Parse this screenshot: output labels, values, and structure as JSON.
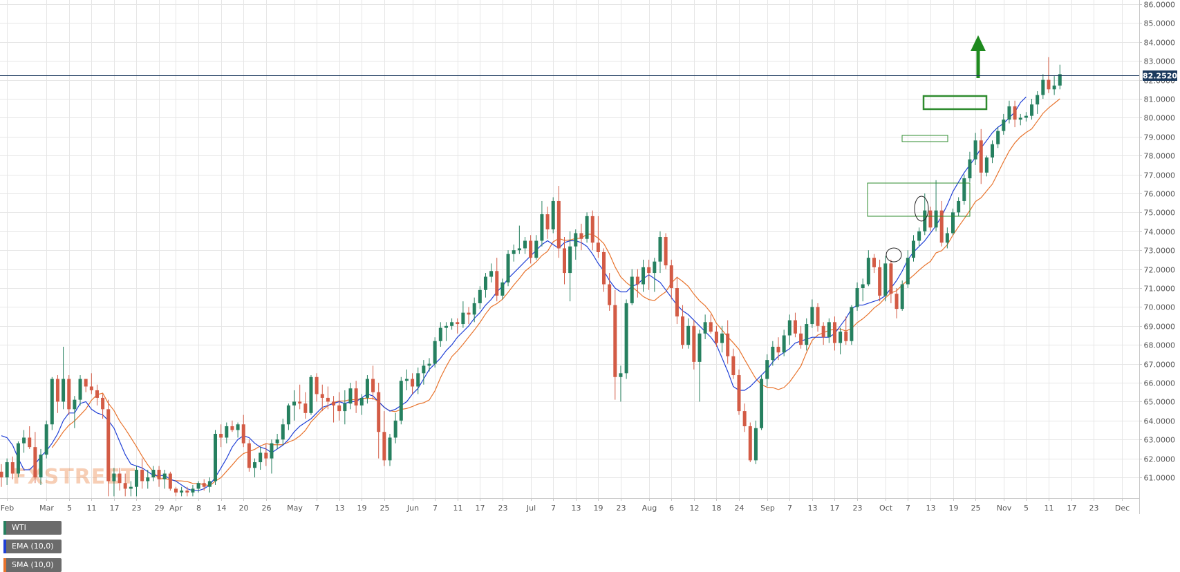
{
  "instrument": "WTI",
  "legend": [
    {
      "label": "WTI",
      "color": "#26805f"
    },
    {
      "label": "EMA (10,0)",
      "color": "#1f3fd6"
    },
    {
      "label": "SMA (10,0)",
      "color": "#e8732c"
    }
  ],
  "watermark": "FXSTREET",
  "last_price_label": "82.2520",
  "colors": {
    "bull": "#26805f",
    "bear": "#d35b45",
    "ema": "#1f3fd6",
    "sma": "#e8732c",
    "annotation": "#2e8b2e",
    "arrow": "#1e8a1e",
    "price_line": "#1c3a5e",
    "grid": "#e6e6e6"
  },
  "chart_data": {
    "type": "candlestick",
    "ylim": [
      60.4,
      86.0
    ],
    "grid": true,
    "y_ticks": [
      "61.0000",
      "62.0000",
      "63.0000",
      "64.0000",
      "65.0000",
      "66.0000",
      "67.0000",
      "68.0000",
      "69.0000",
      "70.0000",
      "71.0000",
      "72.0000",
      "73.0000",
      "74.0000",
      "75.0000",
      "76.0000",
      "77.0000",
      "78.0000",
      "79.0000",
      "80.0000",
      "81.0000",
      "82.0000",
      "83.0000",
      "84.0000",
      "85.0000",
      "86.0000"
    ],
    "x_ticks": [
      {
        "label": "Feb",
        "x": 1
      },
      {
        "label": "Mar",
        "x": 8
      },
      {
        "label": "5",
        "x": 12
      },
      {
        "label": "11",
        "x": 16
      },
      {
        "label": "17",
        "x": 20
      },
      {
        "label": "23",
        "x": 24
      },
      {
        "label": "29",
        "x": 28
      },
      {
        "label": "Apr",
        "x": 31
      },
      {
        "label": "8",
        "x": 35
      },
      {
        "label": "14",
        "x": 39
      },
      {
        "label": "20",
        "x": 43
      },
      {
        "label": "26",
        "x": 47
      },
      {
        "label": "May",
        "x": 52
      },
      {
        "label": "7",
        "x": 56
      },
      {
        "label": "13",
        "x": 60
      },
      {
        "label": "19",
        "x": 64
      },
      {
        "label": "25",
        "x": 68
      },
      {
        "label": "Jun",
        "x": 73
      },
      {
        "label": "7",
        "x": 77
      },
      {
        "label": "11",
        "x": 81
      },
      {
        "label": "17",
        "x": 85
      },
      {
        "label": "23",
        "x": 89
      },
      {
        "label": "Jul",
        "x": 94
      },
      {
        "label": "7",
        "x": 98
      },
      {
        "label": "13",
        "x": 102
      },
      {
        "label": "19",
        "x": 106
      },
      {
        "label": "23",
        "x": 110
      },
      {
        "label": "Aug",
        "x": 115
      },
      {
        "label": "6",
        "x": 119
      },
      {
        "label": "12",
        "x": 123
      },
      {
        "label": "18",
        "x": 127
      },
      {
        "label": "24",
        "x": 131
      },
      {
        "label": "Sep",
        "x": 136
      },
      {
        "label": "7",
        "x": 140
      },
      {
        "label": "13",
        "x": 144
      },
      {
        "label": "17",
        "x": 148
      },
      {
        "label": "23",
        "x": 152
      },
      {
        "label": "Oct",
        "x": 157
      },
      {
        "label": "7",
        "x": 161
      },
      {
        "label": "13",
        "x": 165
      },
      {
        "label": "19",
        "x": 169
      },
      {
        "label": "25",
        "x": 173
      },
      {
        "label": "Nov",
        "x": 178
      },
      {
        "label": "5",
        "x": 182
      },
      {
        "label": "11",
        "x": 186
      },
      {
        "label": "17",
        "x": 190
      },
      {
        "label": "23",
        "x": 194
      },
      {
        "label": "Dec",
        "x": 199
      }
    ],
    "candles": [
      [
        61.3,
        61.7,
        60.5,
        61.0
      ],
      [
        61.0,
        62.0,
        60.6,
        61.8
      ],
      [
        61.8,
        62.1,
        60.9,
        61.2
      ],
      [
        61.2,
        62.9,
        61.0,
        62.8
      ],
      [
        62.8,
        63.5,
        62.3,
        63.1
      ],
      [
        63.1,
        63.7,
        62.5,
        62.6
      ],
      [
        62.6,
        63.4,
        60.7,
        61.0
      ],
      [
        61.0,
        62.5,
        60.6,
        62.2
      ],
      [
        62.2,
        64.0,
        62.0,
        63.8
      ],
      [
        63.8,
        66.3,
        63.5,
        66.2
      ],
      [
        66.2,
        66.4,
        64.4,
        65.0
      ],
      [
        65.0,
        67.9,
        64.6,
        66.2
      ],
      [
        66.2,
        66.4,
        64.3,
        64.6
      ],
      [
        64.6,
        65.3,
        63.6,
        65.1
      ],
      [
        65.1,
        66.4,
        64.8,
        66.2
      ],
      [
        66.2,
        66.2,
        65.5,
        65.8
      ],
      [
        65.8,
        66.5,
        65.4,
        65.6
      ],
      [
        65.6,
        65.9,
        64.8,
        65.2
      ],
      [
        65.2,
        65.4,
        64.1,
        64.6
      ],
      [
        64.6,
        65.1,
        60.0,
        60.8
      ],
      [
        60.8,
        61.5,
        60.0,
        61.2
      ],
      [
        61.2,
        61.5,
        60.3,
        60.7
      ],
      [
        60.7,
        61.2,
        60.0,
        60.4
      ],
      [
        60.4,
        60.8,
        60.0,
        60.5
      ],
      [
        60.5,
        61.6,
        60.0,
        61.4
      ],
      [
        61.4,
        62.0,
        60.4,
        60.8
      ],
      [
        60.8,
        61.4,
        60.4,
        61.0
      ],
      [
        61.0,
        61.6,
        60.8,
        61.4
      ],
      [
        61.4,
        61.6,
        60.5,
        60.9
      ],
      [
        60.9,
        61.4,
        60.4,
        61.2
      ],
      [
        61.2,
        61.3,
        60.3,
        60.4
      ],
      [
        60.4,
        60.5,
        60.0,
        60.2
      ],
      [
        60.2,
        60.5,
        60.0,
        60.3
      ],
      [
        60.3,
        60.5,
        60.0,
        60.2
      ],
      [
        60.2,
        60.6,
        60.0,
        60.4
      ],
      [
        60.4,
        60.8,
        60.2,
        60.7
      ],
      [
        60.7,
        60.9,
        60.3,
        60.5
      ],
      [
        60.5,
        61.0,
        60.2,
        60.8
      ],
      [
        60.8,
        63.5,
        60.6,
        63.3
      ],
      [
        63.3,
        63.8,
        62.6,
        63.1
      ],
      [
        63.1,
        63.9,
        62.8,
        63.7
      ],
      [
        63.7,
        64.0,
        63.4,
        63.5
      ],
      [
        63.5,
        63.9,
        63.1,
        63.8
      ],
      [
        63.8,
        64.3,
        62.6,
        62.8
      ],
      [
        62.8,
        63.0,
        61.3,
        61.5
      ],
      [
        61.5,
        62.0,
        61.0,
        61.8
      ],
      [
        61.8,
        62.6,
        61.4,
        62.3
      ],
      [
        62.3,
        62.8,
        61.6,
        62.0
      ],
      [
        62.0,
        63.0,
        61.2,
        62.8
      ],
      [
        62.8,
        63.3,
        62.5,
        63.0
      ],
      [
        63.0,
        64.1,
        62.7,
        63.8
      ],
      [
        63.8,
        64.9,
        63.5,
        64.8
      ],
      [
        64.8,
        65.6,
        64.0,
        65.0
      ],
      [
        65.0,
        65.9,
        64.6,
        64.9
      ],
      [
        64.9,
        65.5,
        64.1,
        64.4
      ],
      [
        64.4,
        66.4,
        64.3,
        66.3
      ],
      [
        66.3,
        66.5,
        65.0,
        65.4
      ],
      [
        65.4,
        65.9,
        64.5,
        65.2
      ],
      [
        65.2,
        65.8,
        64.6,
        65.0
      ],
      [
        65.0,
        65.3,
        63.9,
        64.8
      ],
      [
        64.8,
        65.5,
        64.0,
        64.5
      ],
      [
        64.5,
        65.6,
        63.8,
        64.9
      ],
      [
        64.9,
        66.0,
        64.6,
        65.7
      ],
      [
        65.7,
        66.1,
        64.4,
        64.8
      ],
      [
        64.8,
        65.4,
        64.3,
        65.2
      ],
      [
        65.2,
        66.4,
        64.9,
        66.2
      ],
      [
        66.2,
        66.9,
        65.1,
        65.5
      ],
      [
        65.5,
        66.0,
        62.0,
        63.4
      ],
      [
        63.4,
        64.5,
        61.6,
        61.9
      ],
      [
        61.9,
        63.3,
        61.6,
        63.1
      ],
      [
        63.1,
        64.4,
        62.8,
        64.0
      ],
      [
        64.0,
        66.3,
        63.8,
        66.1
      ],
      [
        66.1,
        66.7,
        65.6,
        66.2
      ],
      [
        66.2,
        66.5,
        65.4,
        65.8
      ],
      [
        65.8,
        66.8,
        65.4,
        66.5
      ],
      [
        66.5,
        67.2,
        65.9,
        66.9
      ],
      [
        66.9,
        67.3,
        66.6,
        67.0
      ],
      [
        67.0,
        68.4,
        66.8,
        68.2
      ],
      [
        68.2,
        69.2,
        67.9,
        68.9
      ],
      [
        68.9,
        69.2,
        68.2,
        69.0
      ],
      [
        69.0,
        69.4,
        68.8,
        69.2
      ],
      [
        69.2,
        69.4,
        68.6,
        69.1
      ],
      [
        69.1,
        70.3,
        68.9,
        69.7
      ],
      [
        69.7,
        70.0,
        69.1,
        69.6
      ],
      [
        69.6,
        70.5,
        69.2,
        70.2
      ],
      [
        70.2,
        71.1,
        69.9,
        70.9
      ],
      [
        70.9,
        71.8,
        70.5,
        71.6
      ],
      [
        71.6,
        72.3,
        71.3,
        71.9
      ],
      [
        71.9,
        72.6,
        70.3,
        70.6
      ],
      [
        70.6,
        71.5,
        70.4,
        71.3
      ],
      [
        71.3,
        73.0,
        71.1,
        72.8
      ],
      [
        72.8,
        73.3,
        72.4,
        73.0
      ],
      [
        73.0,
        74.3,
        72.8,
        73.1
      ],
      [
        73.1,
        73.7,
        72.8,
        73.5
      ],
      [
        73.5,
        73.8,
        72.3,
        72.6
      ],
      [
        72.6,
        73.8,
        72.5,
        73.5
      ],
      [
        73.5,
        75.6,
        73.2,
        74.9
      ],
      [
        74.9,
        75.3,
        73.6,
        74.1
      ],
      [
        74.1,
        75.8,
        73.9,
        75.6
      ],
      [
        75.6,
        76.4,
        72.6,
        73.1
      ],
      [
        73.1,
        73.7,
        71.2,
        71.8
      ],
      [
        71.8,
        74.0,
        70.3,
        73.2
      ],
      [
        73.2,
        74.1,
        72.5,
        73.9
      ],
      [
        73.9,
        74.4,
        73.0,
        73.6
      ],
      [
        73.6,
        75.0,
        73.4,
        74.8
      ],
      [
        74.8,
        75.1,
        73.0,
        73.4
      ],
      [
        73.4,
        74.8,
        72.6,
        72.9
      ],
      [
        72.9,
        73.1,
        70.8,
        71.2
      ],
      [
        71.2,
        71.8,
        69.8,
        70.1
      ],
      [
        70.1,
        70.9,
        65.1,
        66.3
      ],
      [
        66.3,
        66.9,
        65.0,
        66.5
      ],
      [
        66.5,
        70.4,
        66.2,
        70.2
      ],
      [
        70.2,
        72.0,
        70.1,
        71.6
      ],
      [
        71.6,
        72.0,
        70.5,
        71.2
      ],
      [
        71.2,
        72.5,
        70.8,
        72.1
      ],
      [
        72.1,
        72.5,
        70.9,
        71.8
      ],
      [
        71.8,
        72.6,
        70.8,
        72.4
      ],
      [
        72.4,
        74.0,
        71.8,
        73.7
      ],
      [
        73.7,
        73.9,
        72.0,
        72.2
      ],
      [
        72.2,
        72.5,
        70.4,
        71.0
      ],
      [
        71.0,
        71.6,
        69.1,
        69.5
      ],
      [
        69.5,
        70.1,
        67.8,
        68.0
      ],
      [
        68.0,
        69.4,
        67.8,
        69.0
      ],
      [
        69.0,
        69.3,
        66.7,
        67.1
      ],
      [
        67.1,
        68.8,
        65.0,
        68.6
      ],
      [
        68.6,
        69.6,
        68.3,
        69.2
      ],
      [
        69.2,
        69.6,
        68.6,
        68.7
      ],
      [
        68.7,
        69.0,
        67.9,
        68.1
      ],
      [
        68.1,
        69.0,
        67.6,
        68.6
      ],
      [
        68.6,
        69.3,
        67.0,
        67.4
      ],
      [
        67.4,
        67.8,
        66.2,
        66.4
      ],
      [
        66.4,
        66.7,
        64.3,
        64.5
      ],
      [
        64.5,
        64.9,
        63.4,
        63.7
      ],
      [
        63.7,
        63.9,
        61.8,
        61.9
      ],
      [
        61.9,
        64.0,
        61.7,
        63.6
      ],
      [
        63.6,
        66.4,
        63.5,
        66.2
      ],
      [
        66.2,
        67.5,
        65.8,
        67.2
      ],
      [
        67.2,
        68.2,
        66.9,
        67.9
      ],
      [
        67.9,
        68.4,
        67.2,
        67.6
      ],
      [
        67.6,
        68.8,
        67.4,
        68.5
      ],
      [
        68.5,
        69.6,
        68.0,
        69.3
      ],
      [
        69.3,
        69.7,
        68.4,
        68.6
      ],
      [
        68.6,
        69.0,
        67.8,
        68.0
      ],
      [
        68.0,
        69.4,
        67.7,
        69.1
      ],
      [
        69.1,
        70.4,
        68.9,
        70.0
      ],
      [
        70.0,
        70.2,
        68.7,
        69.0
      ],
      [
        69.0,
        69.2,
        68.0,
        68.4
      ],
      [
        68.4,
        69.4,
        68.1,
        69.2
      ],
      [
        69.2,
        69.5,
        67.7,
        68.1
      ],
      [
        68.1,
        68.9,
        67.5,
        68.7
      ],
      [
        68.7,
        69.5,
        68.0,
        68.2
      ],
      [
        68.2,
        70.1,
        68.0,
        70.0
      ],
      [
        70.0,
        71.3,
        69.8,
        71.0
      ],
      [
        71.0,
        71.5,
        70.3,
        71.2
      ],
      [
        71.2,
        73.0,
        71.1,
        72.6
      ],
      [
        72.6,
        72.8,
        71.8,
        72.1
      ],
      [
        72.1,
        72.5,
        70.3,
        70.6
      ],
      [
        70.6,
        72.7,
        70.3,
        72.3
      ],
      [
        72.3,
        72.5,
        70.2,
        70.7
      ],
      [
        70.7,
        71.0,
        69.4,
        69.9
      ],
      [
        69.9,
        71.4,
        69.8,
        71.2
      ],
      [
        71.2,
        73.0,
        71.0,
        72.6
      ],
      [
        72.6,
        73.8,
        72.4,
        73.5
      ],
      [
        73.5,
        74.2,
        73.2,
        74.0
      ],
      [
        74.0,
        76.0,
        73.8,
        75.1
      ],
      [
        75.1,
        75.3,
        74.0,
        74.2
      ],
      [
        74.2,
        76.7,
        74.0,
        75.1
      ],
      [
        75.1,
        75.6,
        73.2,
        73.4
      ],
      [
        73.4,
        74.2,
        73.1,
        73.9
      ],
      [
        73.9,
        75.2,
        73.8,
        75.0
      ],
      [
        75.0,
        75.8,
        74.8,
        75.6
      ],
      [
        75.6,
        77.0,
        75.4,
        76.8
      ],
      [
        76.8,
        78.2,
        76.6,
        77.8
      ],
      [
        77.8,
        79.2,
        77.5,
        78.8
      ],
      [
        78.8,
        79.4,
        76.5,
        77.1
      ],
      [
        77.1,
        78.0,
        76.9,
        77.9
      ],
      [
        77.9,
        78.8,
        77.6,
        78.6
      ],
      [
        78.6,
        79.5,
        78.4,
        79.3
      ],
      [
        79.3,
        80.2,
        79.1,
        79.9
      ],
      [
        79.9,
        80.9,
        79.7,
        80.6
      ],
      [
        80.6,
        80.9,
        79.5,
        79.9
      ],
      [
        79.9,
        80.2,
        79.6,
        80.0
      ],
      [
        80.0,
        80.3,
        79.8,
        80.1
      ],
      [
        80.1,
        81.0,
        79.9,
        80.7
      ],
      [
        80.7,
        81.4,
        80.2,
        81.2
      ],
      [
        81.2,
        82.3,
        81.0,
        82.0
      ],
      [
        82.0,
        83.2,
        81.3,
        81.5
      ],
      [
        81.5,
        82.2,
        81.2,
        81.7
      ],
      [
        81.7,
        82.8,
        81.5,
        82.3
      ]
    ],
    "ema": [
      63.2,
      63.1,
      62.7,
      62.0,
      61.4,
      61.4,
      61.7,
      62.1,
      62.4,
      62.8,
      63.3,
      64.0,
      64.4,
      64.4,
      64.9,
      65.0,
      64.6,
      64.4,
      64.3,
      64.0,
      63.6,
      62.9,
      62.2,
      61.7,
      61.6,
      61.5,
      61.3,
      61.1,
      61.1,
      61.1,
      60.9,
      60.8,
      60.6,
      60.4,
      60.3,
      60.3,
      60.4,
      60.6,
      61.0,
      61.5,
      62.0,
      62.6,
      63.0,
      63.2,
      63.1,
      62.8,
      62.6,
      62.5,
      62.3,
      62.5,
      62.7,
      63.0,
      63.4,
      63.7,
      63.9,
      64.1,
      64.4,
      64.7,
      64.8,
      64.9,
      65.0,
      64.9,
      65.0,
      65.0,
      65.2,
      65.4,
      65.3,
      65.0,
      64.7,
      64.5,
      64.6,
      64.8,
      65.0,
      65.4,
      65.7,
      66.2,
      66.7,
      67.0,
      67.3,
      67.7,
      68.0,
      68.4,
      68.7,
      69.0,
      69.4,
      69.7,
      70.1,
      70.4,
      70.8,
      71.1,
      71.5,
      71.8,
      72.1,
      72.4,
      72.7,
      73.0,
      73.3,
      73.5,
      73.3,
      73.1,
      73.4,
      73.5,
      73.5,
      73.4,
      73.2,
      72.8,
      72.3,
      71.9,
      71.4,
      71.0,
      70.8,
      70.8,
      71.1,
      71.2,
      71.5,
      71.7,
      71.5,
      71.3,
      70.9,
      70.5,
      70.1,
      69.8,
      69.6,
      69.3,
      69.0,
      68.7,
      68.4,
      68.0,
      67.3,
      66.6,
      65.8,
      65.6,
      65.6,
      65.8,
      66.1,
      66.4,
      66.7,
      67.1,
      67.4,
      67.6,
      67.8,
      68.1,
      68.2,
      68.3,
      68.4,
      68.4,
      68.4,
      68.4,
      68.6,
      69.0,
      69.4,
      69.9,
      70.1,
      70.1,
      70.2,
      70.3,
      70.4,
      70.6,
      71.0,
      71.4,
      71.9,
      72.5,
      72.9,
      73.2,
      73.5,
      73.9,
      74.3,
      74.8,
      75.4,
      76.1,
      76.6,
      77.1,
      77.5,
      77.9,
      78.4,
      78.8,
      79.2,
      79.5,
      79.7,
      80.0,
      80.3,
      80.8,
      81.1
    ]
  }
}
